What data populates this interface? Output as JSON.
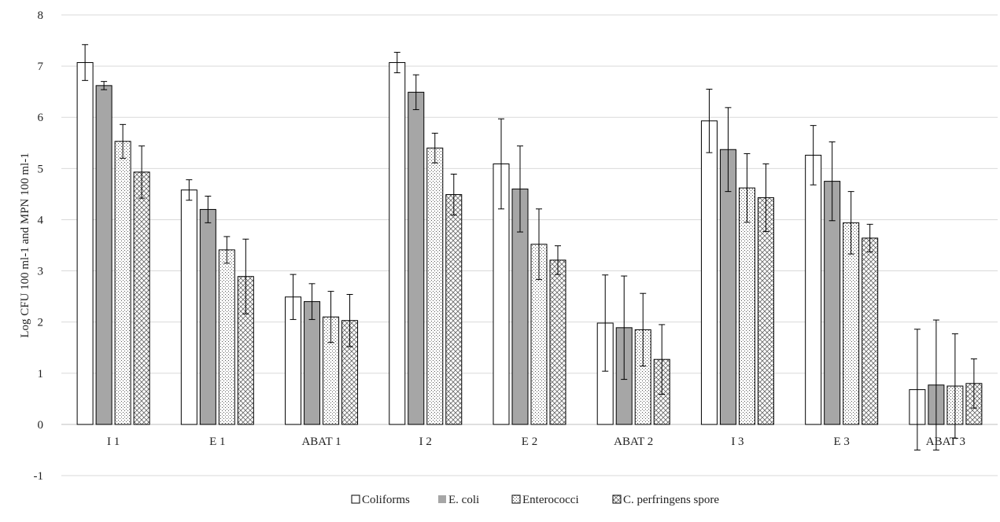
{
  "chart_data": {
    "type": "bar",
    "title": "",
    "xlabel": "",
    "ylabel": "Log CFU 100 ml-1  and MPN 100 ml-1",
    "ylim": [
      -1,
      8
    ],
    "yticks": [
      -1,
      0,
      1,
      2,
      3,
      4,
      5,
      6,
      7,
      8
    ],
    "grid": true,
    "legend_position": "bottom",
    "categories": [
      "I 1",
      "E 1",
      "ABAT 1",
      "I 2",
      "E 2",
      "ABAT 2",
      "I 3",
      "E 3",
      "ABAT 3"
    ],
    "series": [
      {
        "name": "Coliforms",
        "fill": "white",
        "color": "#ffffff",
        "values": [
          7.07,
          4.58,
          2.49,
          7.07,
          5.09,
          1.98,
          5.93,
          5.26,
          0.68
        ],
        "errors": [
          0.35,
          0.2,
          0.44,
          0.2,
          0.88,
          0.94,
          0.62,
          0.58,
          1.18
        ]
      },
      {
        "name": "E. coli",
        "fill": "gray",
        "color": "#a6a6a6",
        "values": [
          6.62,
          4.2,
          2.4,
          6.49,
          4.6,
          1.89,
          5.37,
          4.75,
          0.77
        ],
        "errors": [
          0.08,
          0.26,
          0.35,
          0.34,
          0.84,
          1.01,
          0.82,
          0.77,
          1.27
        ]
      },
      {
        "name": "Enterococci",
        "fill": "dots",
        "color": "#ffffff",
        "values": [
          5.53,
          3.41,
          2.1,
          5.4,
          3.52,
          1.85,
          4.62,
          3.94,
          0.75
        ],
        "errors": [
          0.33,
          0.26,
          0.5,
          0.29,
          0.69,
          0.71,
          0.67,
          0.61,
          1.02
        ]
      },
      {
        "name": "C. perfringens spore",
        "fill": "crosshatch",
        "color": "#ffffff",
        "values": [
          4.93,
          2.89,
          2.03,
          4.49,
          3.21,
          1.27,
          4.43,
          3.64,
          0.8
        ],
        "errors": [
          0.51,
          0.73,
          0.51,
          0.4,
          0.28,
          0.68,
          0.66,
          0.27,
          0.48
        ]
      }
    ]
  }
}
